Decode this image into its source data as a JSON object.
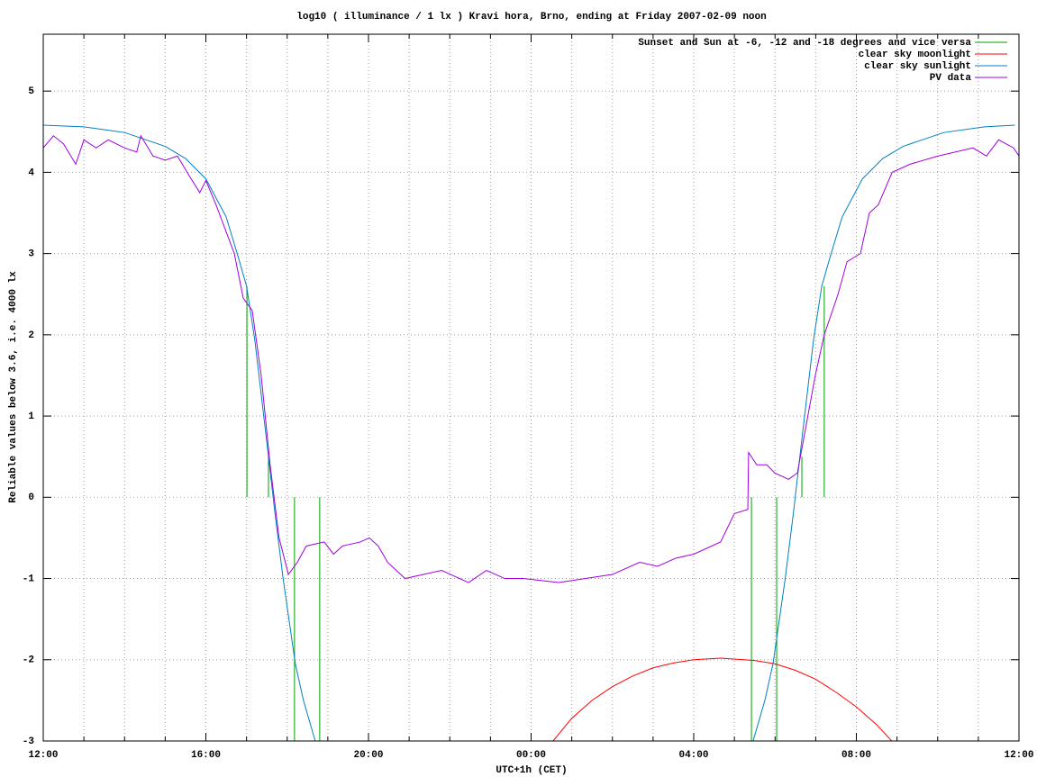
{
  "chart_data": {
    "type": "line",
    "title": "log10 ( illuminance / 1 lx ) Kravi hora, Brno, ending at Friday 2007-02-09 noon",
    "x_label": "UTC+1h (CET)",
    "y_label": "Reliable values below 3.6, i.e. 4000 lx",
    "xlim": [
      0,
      24
    ],
    "xticks": [
      {
        "value": 0,
        "label": "12:00"
      },
      {
        "value": 4,
        "label": "16:00"
      },
      {
        "value": 8,
        "label": "20:00"
      },
      {
        "value": 12,
        "label": "00:00"
      },
      {
        "value": 16,
        "label": "04:00"
      },
      {
        "value": 20,
        "label": "08:00"
      },
      {
        "value": 24,
        "label": "12:00"
      }
    ],
    "xminortics": 4,
    "ylim": [
      -3,
      5.7
    ],
    "yticks": [
      -3,
      -2,
      -1,
      0,
      1,
      2,
      3,
      4,
      5
    ],
    "grid": true,
    "legend": "top-right",
    "series": [
      {
        "name": "Sunset and Sun at -6, -12 and -18 degrees and vice versa",
        "color": "#00a000",
        "x": [
          5.01,
          5.01,
          5.01,
          5.54,
          5.54,
          5.54,
          6.18,
          6.18,
          6.18,
          6.8,
          6.8,
          6.8,
          17.42,
          17.42,
          17.42,
          18.04,
          18.04,
          18.04,
          18.66,
          18.66,
          18.66,
          19.21,
          19.21
        ],
        "values": [
          0,
          2.6,
          null,
          0,
          0.5,
          null,
          0,
          -3,
          null,
          0,
          -3,
          null,
          0,
          -3,
          null,
          0,
          -3,
          null,
          0,
          0.5,
          null,
          0,
          2.6
        ]
      },
      {
        "name": "clear sky moonlight",
        "color": "#ff0000",
        "x": [
          12.54,
          13,
          13.5,
          14,
          14.5,
          15,
          15.5,
          16,
          16.66,
          17.5,
          18,
          18.5,
          19,
          19.5,
          20,
          20.5,
          20.87
        ],
        "values": [
          -3,
          -2.72,
          -2.5,
          -2.33,
          -2.2,
          -2.1,
          -2.04,
          -2.0,
          -1.98,
          -2.01,
          -2.05,
          -2.13,
          -2.24,
          -2.4,
          -2.58,
          -2.8,
          -3
        ]
      },
      {
        "name": "clear sky sunlight",
        "color": "#0080c0",
        "x": [
          0,
          1,
          2,
          3,
          3.5,
          4,
          4.5,
          4.8,
          5.0,
          5.2,
          5.4,
          5.54,
          5.7,
          5.9,
          6.1,
          6.2,
          6.4,
          6.69,
          12,
          17.46,
          17.75,
          17.95,
          18.05,
          18.25,
          18.45,
          18.61,
          18.75,
          18.95,
          19.15,
          19.35,
          19.65,
          20.15,
          20.65,
          21.15,
          22.15,
          23.15,
          23.9
        ],
        "values": [
          4.58,
          4.56,
          4.49,
          4.32,
          4.17,
          3.92,
          3.45,
          2.95,
          2.6,
          1.95,
          1.1,
          0.5,
          -0.2,
          -1.0,
          -1.7,
          -2.05,
          -2.5,
          -3,
          null,
          -3,
          -2.5,
          -2.05,
          -1.7,
          -1.0,
          -0.2,
          0.5,
          1.1,
          1.95,
          2.6,
          2.95,
          3.45,
          3.92,
          4.17,
          4.32,
          4.49,
          4.56,
          4.58
        ]
      },
      {
        "name": "PV data",
        "color": "#a000e0",
        "x": [
          0,
          0.25,
          0.5,
          0.8,
          1,
          1.3,
          1.6,
          2,
          2.3,
          2.4,
          2.7,
          3,
          3.3,
          3.6,
          3.85,
          4,
          4.25,
          4.7,
          4.92,
          5.14,
          5.36,
          5.58,
          5.8,
          6.03,
          6.25,
          6.47,
          6.91,
          7.14,
          7.36,
          7.8,
          8.02,
          8.24,
          8.47,
          8.9,
          9.35,
          9.8,
          10.02,
          10.46,
          10.9,
          11.35,
          11.8,
          12.68,
          13.34,
          14,
          14.67,
          15.11,
          15.56,
          16,
          16.66,
          17,
          17.33,
          17.35,
          17.55,
          17.8,
          17.99,
          18.33,
          18.55,
          18.77,
          18.99,
          19.21,
          19.55,
          19.77,
          20.1,
          20.32,
          20.54,
          20.88,
          21.32,
          22,
          22.87,
          23.2,
          23.5,
          23.87,
          24
        ],
        "values": [
          4.3,
          4.45,
          4.35,
          4.1,
          4.4,
          4.3,
          4.4,
          4.3,
          4.25,
          4.45,
          4.2,
          4.15,
          4.2,
          3.95,
          3.75,
          3.9,
          3.6,
          3.0,
          2.45,
          2.3,
          1.5,
          0.4,
          -0.5,
          -0.95,
          -0.8,
          -0.6,
          -0.55,
          -0.7,
          -0.6,
          -0.55,
          -0.5,
          -0.6,
          -0.8,
          -1.0,
          -0.95,
          -0.9,
          -0.95,
          -1.05,
          -0.9,
          -1.0,
          -1.0,
          -1.05,
          -1.0,
          -0.95,
          -0.8,
          -0.85,
          -0.75,
          -0.7,
          -0.55,
          -0.2,
          -0.15,
          0.55,
          0.4,
          0.4,
          0.3,
          0.22,
          0.3,
          0.9,
          1.5,
          2.0,
          2.5,
          2.9,
          3.0,
          3.5,
          3.6,
          4.0,
          4.1,
          4.2,
          4.3,
          4.2,
          4.4,
          4.3,
          4.2
        ]
      }
    ]
  }
}
